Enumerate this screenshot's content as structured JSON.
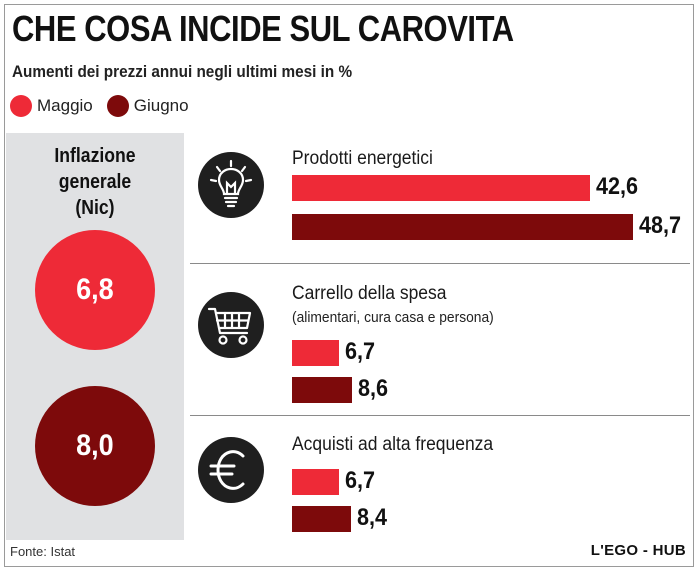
{
  "title": "CHE COSA INCIDE SUL CAROVITA",
  "subtitle": "Aumenti dei prezzi annui negli ultimi mesi in %",
  "legend": [
    {
      "label": "Maggio",
      "color": "#ee2a37"
    },
    {
      "label": "Giugno",
      "color": "#7d0a0b"
    }
  ],
  "inflation": {
    "label_line1": "Inflazione",
    "label_line2": "generale",
    "label_line3": "(Nic)",
    "maggio": "6,8",
    "giugno": "8,0"
  },
  "icons": [
    "lightbulb-icon",
    "shopping-cart-icon",
    "euro-icon"
  ],
  "chart_data": {
    "type": "bar",
    "title": "CHE COSA INCIDE SUL CAROVITA",
    "subtitle": "Aumenti dei prezzi annui negli ultimi mesi in %",
    "series_names": [
      "Maggio",
      "Giugno"
    ],
    "colors": [
      "#ee2a37",
      "#7d0a0b"
    ],
    "categories": [
      {
        "name": "Prodotti energetici",
        "note": "",
        "values": [
          42.6,
          48.7
        ],
        "labels": [
          "42,6",
          "48,7"
        ]
      },
      {
        "name": "Carrello della spesa",
        "note": "(alimentari, cura casa e persona)",
        "values": [
          6.7,
          8.6
        ],
        "labels": [
          "6,7",
          "8,6"
        ]
      },
      {
        "name": "Acquisti ad alta frequenza",
        "note": "",
        "values": [
          6.7,
          8.4
        ],
        "labels": [
          "6,7",
          "8,4"
        ]
      }
    ],
    "overall": {
      "name": "Inflazione generale (Nic)",
      "values": [
        6.8,
        8.0
      ],
      "labels": [
        "6,8",
        "8,0"
      ]
    }
  },
  "footer": {
    "source": "Fonte: Istat",
    "credit": "L'EGO - HUB"
  }
}
